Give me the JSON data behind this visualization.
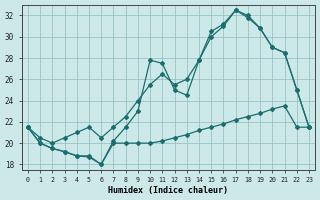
{
  "xlabel": "Humidex (Indice chaleur)",
  "bg_color": "#cce8e8",
  "line_color": "#1a6e6e",
  "xlim": [
    -0.5,
    23.5
  ],
  "ylim": [
    17.5,
    33.0
  ],
  "xticks": [
    0,
    1,
    2,
    3,
    4,
    5,
    6,
    7,
    8,
    9,
    10,
    11,
    12,
    13,
    14,
    15,
    16,
    17,
    18,
    19,
    20,
    21,
    22,
    23
  ],
  "yticks": [
    18,
    20,
    22,
    24,
    26,
    28,
    30,
    32
  ],
  "line1_x": [
    0,
    1,
    2,
    3,
    4,
    5,
    6,
    7,
    8,
    9,
    10,
    11,
    12,
    13,
    14,
    15,
    16,
    17,
    18,
    19,
    20,
    21,
    22,
    23
  ],
  "line1_y": [
    21.5,
    20.0,
    19.5,
    19.2,
    18.8,
    18.8,
    18.0,
    20.0,
    20.0,
    20.0,
    20.0,
    20.2,
    20.5,
    20.8,
    21.2,
    21.5,
    21.8,
    22.2,
    22.5,
    22.8,
    23.2,
    23.5,
    21.5,
    21.5
  ],
  "line2_x": [
    0,
    1,
    2,
    3,
    4,
    5,
    6,
    7,
    8,
    9,
    10,
    11,
    12,
    13,
    14,
    15,
    16,
    17,
    18,
    19,
    20,
    21,
    22,
    23
  ],
  "line2_y": [
    21.5,
    20.0,
    19.5,
    19.2,
    18.8,
    18.7,
    18.0,
    20.2,
    21.5,
    23.0,
    27.8,
    27.5,
    25.0,
    24.5,
    27.8,
    30.5,
    31.2,
    32.5,
    31.8,
    30.8,
    29.0,
    28.5,
    25.0,
    21.5
  ],
  "line3_x": [
    0,
    1,
    2,
    3,
    4,
    5,
    6,
    7,
    8,
    9,
    10,
    11,
    12,
    13,
    14,
    15,
    16,
    17,
    18,
    19,
    20,
    21,
    22,
    23
  ],
  "line3_y": [
    21.5,
    20.5,
    20.0,
    20.5,
    21.0,
    21.5,
    20.5,
    21.5,
    22.5,
    24.0,
    25.5,
    26.5,
    25.5,
    26.0,
    27.8,
    30.0,
    31.0,
    32.5,
    32.0,
    30.8,
    29.0,
    28.5,
    25.0,
    21.5
  ]
}
